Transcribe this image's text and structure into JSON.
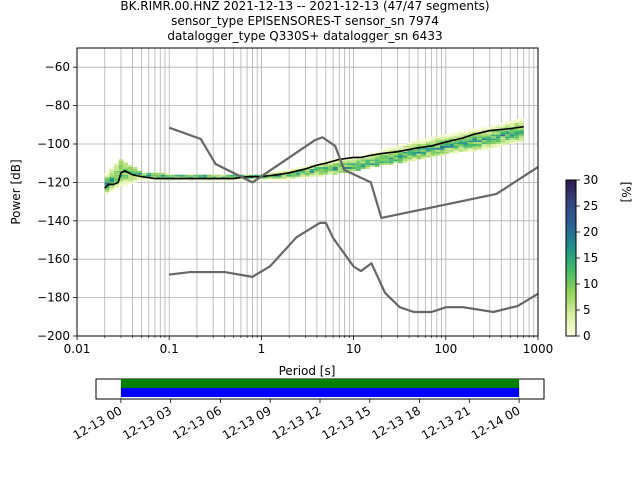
{
  "chart_data": [
    {
      "type": "psd-probability-density",
      "title_lines": [
        "BK.RIMR.00.HNZ   2021-12-13 -- 2021-12-13  (47/47 segments)",
        "sensor_type EPISENSORES-T sensor_sn 7974",
        "datalogger_type Q330S+ datalogger_sn 6433"
      ],
      "xlabel": "Period [s]",
      "ylabel": "Power [dB]",
      "x_scale": "log",
      "xlim": [
        0.01,
        1000
      ],
      "ylim": [
        -200,
        -50
      ],
      "x_tick_labels": [
        "0.01",
        "0.1",
        "1",
        "10",
        "100",
        "1000"
      ],
      "x_ticks": [
        0.01,
        0.1,
        1,
        10,
        100,
        1000
      ],
      "y_ticks": [
        -200,
        -180,
        -160,
        -140,
        -120,
        -100,
        -80,
        -60
      ],
      "y_tick_labels": [
        "−200",
        "−180",
        "−160",
        "−140",
        "−120",
        "−100",
        "−80",
        "−60"
      ],
      "grid": true,
      "colorbar": {
        "label": "[%]",
        "range": [
          0,
          30
        ],
        "ticks": [
          0,
          5,
          10,
          15,
          20,
          25,
          30
        ],
        "colors": [
          "#ffffe0",
          "#d4ed9a",
          "#8fd15a",
          "#3fb86a",
          "#1f8f8a",
          "#2b5f96",
          "#36437f",
          "#2e1a4f"
        ]
      },
      "series": [
        {
          "role": "mean",
          "color": "#000000",
          "x": [
            0.02,
            0.022,
            0.025,
            0.028,
            0.03,
            0.033,
            0.04,
            0.05,
            0.07,
            0.1,
            0.15,
            0.2,
            0.3,
            0.5,
            0.7,
            1,
            1.5,
            2,
            3,
            4,
            5,
            7,
            10,
            12,
            15,
            20,
            30,
            50,
            70,
            100,
            150,
            200,
            300,
            500,
            700
          ],
          "y": [
            -123,
            -121,
            -121,
            -120,
            -115,
            -114,
            -116,
            -117,
            -118,
            -118,
            -118,
            -118,
            -118,
            -118,
            -117,
            -117,
            -116,
            -115,
            -113,
            -111,
            -110,
            -108,
            -107,
            -107,
            -106,
            -105,
            -104,
            -102,
            -101,
            -99,
            -97,
            -95,
            -93,
            -92,
            -91
          ]
        },
        {
          "role": "new-high-noise-model",
          "color": "#666666",
          "x": [
            0.1,
            0.22,
            0.32,
            0.8,
            3.8,
            4.6,
            6.3,
            7.9,
            15.4,
            20,
            354.8
          ],
          "y": [
            -91.5,
            -97.4,
            -110.5,
            -120,
            -98,
            -96.5,
            -101,
            -113.5,
            -120,
            -138.5,
            -126
          ],
          "extended_to": {
            "x": 1000,
            "y": -112
          }
        },
        {
          "role": "new-low-noise-model",
          "color": "#666666",
          "x": [
            0.1,
            0.17,
            0.4,
            0.8,
            1.24,
            2.4,
            4.3,
            5,
            6,
            10,
            12,
            15.6,
            21.9,
            31.6,
            45,
            70,
            101,
            154,
            328,
            600,
            1000
          ],
          "y": [
            -168,
            -166.7,
            -166.7,
            -169.2,
            -163.7,
            -148.6,
            -141.1,
            -141.1,
            -149,
            -163.8,
            -166.2,
            -162.1,
            -177.5,
            -185,
            -187.5,
            -187.5,
            -185,
            -185,
            -187.5,
            -184.4,
            -178
          ]
        }
      ],
      "density_band": {
        "x": [
          0.02,
          0.03,
          0.05,
          0.1,
          0.3,
          1,
          2,
          5,
          10,
          20,
          50,
          100,
          300,
          700
        ],
        "upper": [
          -116,
          -108,
          -115,
          -116,
          -116,
          -116,
          -113,
          -108,
          -104,
          -100,
          -96,
          -93,
          -90,
          -85
        ],
        "lower": [
          -126,
          -124,
          -120,
          -120,
          -120,
          -119,
          -118,
          -116,
          -114,
          -111,
          -108,
          -105,
          -102,
          -98
        ],
        "peak": [
          -122,
          -114,
          -116,
          -117,
          -117,
          -117,
          -116,
          -113,
          -112,
          -109,
          -104,
          -101,
          -97,
          -93
        ]
      }
    },
    {
      "type": "timeline",
      "x_tick_labels": [
        "12-13 00",
        "12-13 03",
        "12-13 06",
        "12-13 09",
        "12-13 12",
        "12-13 15",
        "12-13 18",
        "12-13 21",
        "12-14 00"
      ],
      "range_hours": [
        -1.5,
        25.5
      ],
      "bars": [
        {
          "color": "#008000",
          "start_hour": 0,
          "end_hour": 24
        },
        {
          "color": "#0000ff",
          "start_hour": 0,
          "end_hour": 24
        }
      ]
    }
  ]
}
